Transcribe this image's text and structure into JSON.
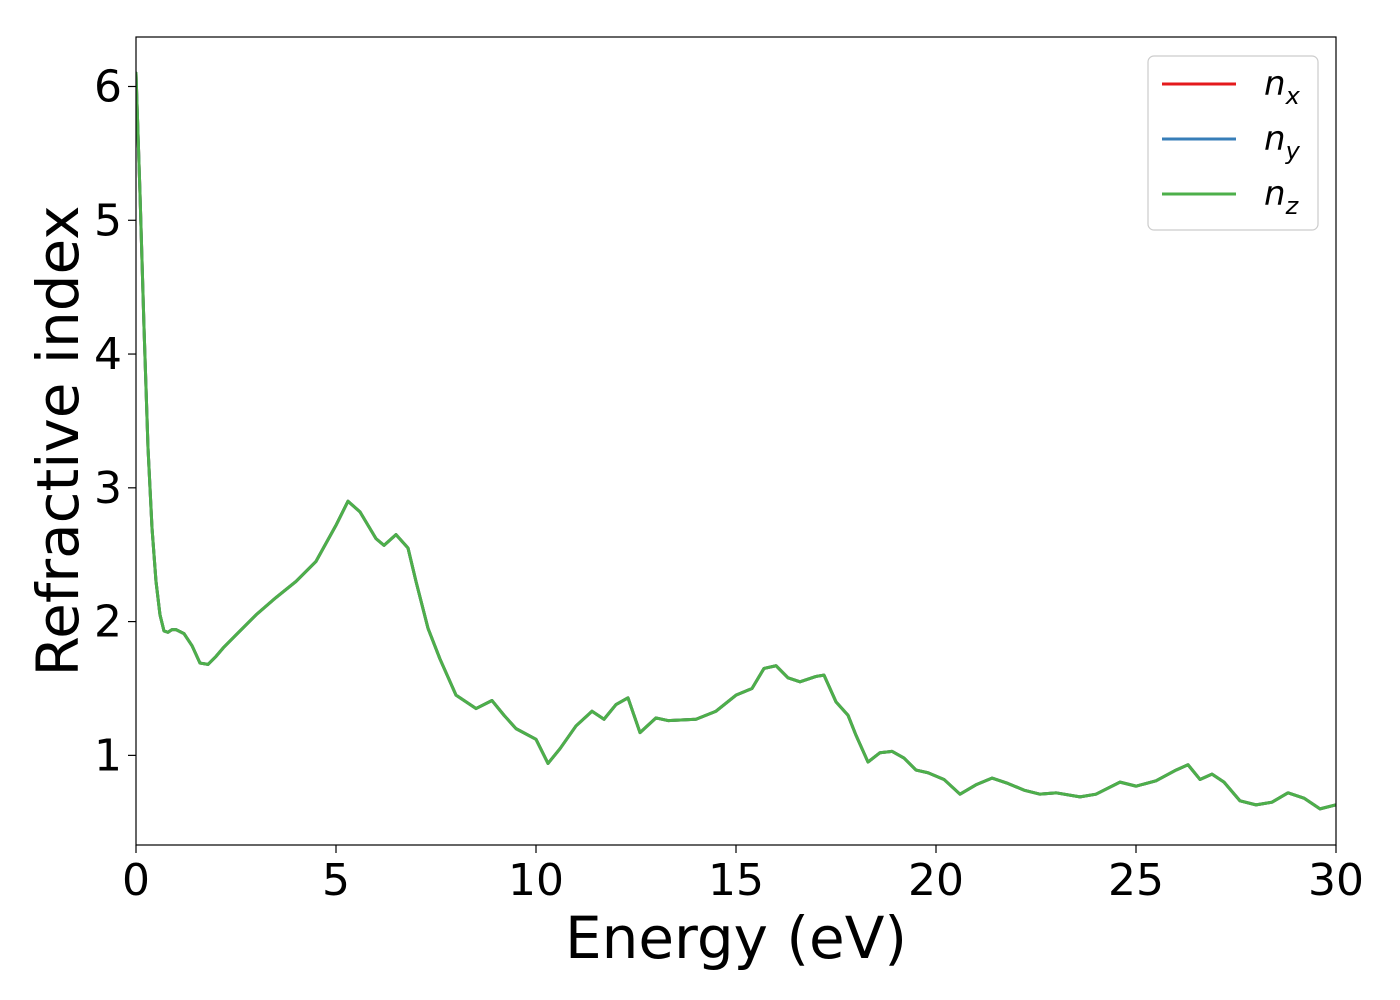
{
  "chart_data": {
    "type": "line",
    "title": "",
    "xlabel": "Energy (eV)",
    "ylabel": "Refractive index",
    "xlim": [
      0,
      30
    ],
    "ylim": [
      0.33,
      6.37
    ],
    "xticks": [
      0,
      5,
      10,
      15,
      20,
      25,
      30
    ],
    "yticks": [
      1,
      2,
      3,
      4,
      5,
      6
    ],
    "grid": false,
    "legend_position": "top-right",
    "series": [
      {
        "name": "n_x",
        "label_base": "n",
        "label_sub": "x",
        "color": "#e41a1c"
      },
      {
        "name": "n_y",
        "label_base": "n",
        "label_sub": "y",
        "color": "#377eb8"
      },
      {
        "name": "n_z",
        "label_base": "n",
        "label_sub": "z",
        "color": "#4daf4a"
      }
    ],
    "x": [
      0.0,
      0.1,
      0.2,
      0.3,
      0.4,
      0.5,
      0.6,
      0.7,
      0.8,
      0.9,
      1.0,
      1.2,
      1.4,
      1.6,
      1.8,
      2.0,
      2.2,
      2.5,
      3.0,
      3.5,
      4.0,
      4.5,
      5.0,
      5.3,
      5.6,
      6.0,
      6.2,
      6.5,
      6.8,
      7.0,
      7.3,
      7.6,
      8.0,
      8.5,
      8.9,
      9.2,
      9.5,
      10.0,
      10.3,
      10.6,
      11.0,
      11.4,
      11.7,
      12.0,
      12.3,
      12.6,
      13.0,
      13.3,
      14.0,
      14.5,
      15.0,
      15.4,
      15.7,
      16.0,
      16.3,
      16.6,
      17.0,
      17.2,
      17.5,
      17.8,
      18.0,
      18.3,
      18.6,
      18.9,
      19.2,
      19.5,
      19.8,
      20.2,
      20.6,
      21.0,
      21.4,
      21.8,
      22.2,
      22.6,
      23.0,
      23.6,
      24.0,
      24.6,
      25.0,
      25.5,
      26.0,
      26.3,
      26.6,
      26.9,
      27.2,
      27.6,
      28.0,
      28.4,
      28.8,
      29.2,
      29.6,
      30.0
    ],
    "values": [
      6.1,
      5.2,
      4.2,
      3.3,
      2.7,
      2.3,
      2.05,
      1.93,
      1.92,
      1.94,
      1.94,
      1.91,
      1.82,
      1.69,
      1.68,
      1.74,
      1.81,
      1.9,
      2.05,
      2.18,
      2.3,
      2.45,
      2.72,
      2.9,
      2.82,
      2.62,
      2.57,
      2.65,
      2.55,
      2.3,
      1.95,
      1.72,
      1.45,
      1.35,
      1.41,
      1.3,
      1.2,
      1.12,
      0.94,
      1.05,
      1.22,
      1.33,
      1.27,
      1.38,
      1.43,
      1.17,
      1.28,
      1.26,
      1.27,
      1.33,
      1.45,
      1.5,
      1.65,
      1.67,
      1.58,
      1.55,
      1.59,
      1.6,
      1.4,
      1.3,
      1.15,
      0.95,
      1.02,
      1.03,
      0.98,
      0.89,
      0.87,
      0.82,
      0.71,
      0.78,
      0.83,
      0.79,
      0.74,
      0.71,
      0.72,
      0.69,
      0.71,
      0.8,
      0.77,
      0.81,
      0.89,
      0.93,
      0.82,
      0.86,
      0.8,
      0.66,
      0.63,
      0.65,
      0.72,
      0.68,
      0.6,
      0.63
    ]
  }
}
